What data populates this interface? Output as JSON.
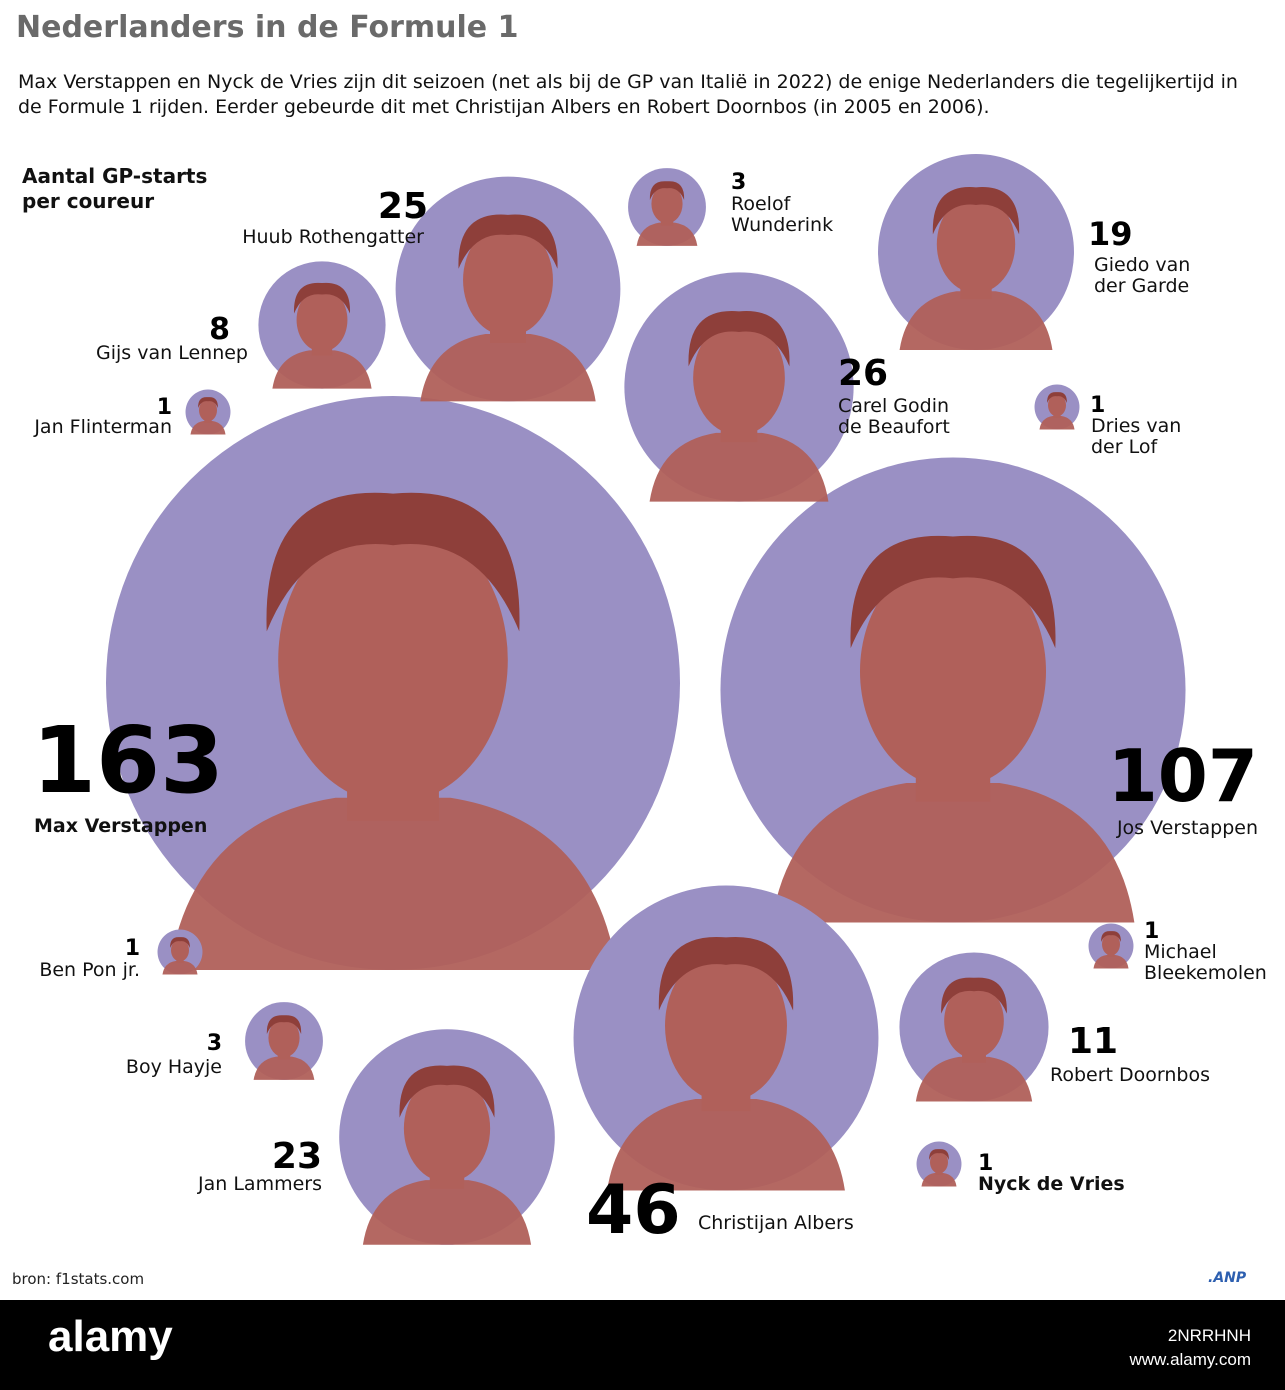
{
  "title": "Nederlanders in de Formule 1",
  "subtitle": "Max Verstappen en Nyck de Vries zijn dit seizoen (net als bij de GP van Italië in 2022) de enige Nederlanders die tegelijkertijd in de Formule 1 rijden. Eerder gebeurde dit met Christijan Albers en Robert Doornbos (in 2005 en 2006).",
  "legend_heading": [
    "Aantal GP-starts",
    "per coureur"
  ],
  "source": "bron: f1stats.com",
  "brand": ".ANP",
  "footer": {
    "logo": "alamy",
    "image_id": "2NRRHNH",
    "site": "www.alamy.com"
  },
  "colors": {
    "bubble": "#9a90c4",
    "portrait": "#b0605a",
    "title": "#6a6a6a",
    "brand": "#2d5fb0"
  },
  "chart_data": {
    "type": "bubble",
    "measure": "Aantal GP-starts per coureur",
    "drivers": [
      {
        "name": "Max Verstappen",
        "value": 163,
        "bold_name": true
      },
      {
        "name": "Jos Verstappen",
        "value": 107
      },
      {
        "name": "Christijan Albers",
        "value": 46
      },
      {
        "name": "Carel Godin de Beaufort",
        "value": 26
      },
      {
        "name": "Huub Rothengatter",
        "value": 25
      },
      {
        "name": "Jan Lammers",
        "value": 23
      },
      {
        "name": "Giedo van der Garde",
        "value": 19
      },
      {
        "name": "Robert Doornbos",
        "value": 11
      },
      {
        "name": "Gijs van Lennep",
        "value": 8
      },
      {
        "name": "Roelof Wunderink",
        "value": 3
      },
      {
        "name": "Boy Hayje",
        "value": 3
      },
      {
        "name": "Jan Flinterman",
        "value": 1
      },
      {
        "name": "Dries van der Lof",
        "value": 1
      },
      {
        "name": "Ben Pon jr.",
        "value": 1
      },
      {
        "name": "Michael Bleekemolen",
        "value": 1
      },
      {
        "name": "Nyck de Vries",
        "value": 1,
        "bold_name": true
      }
    ]
  }
}
